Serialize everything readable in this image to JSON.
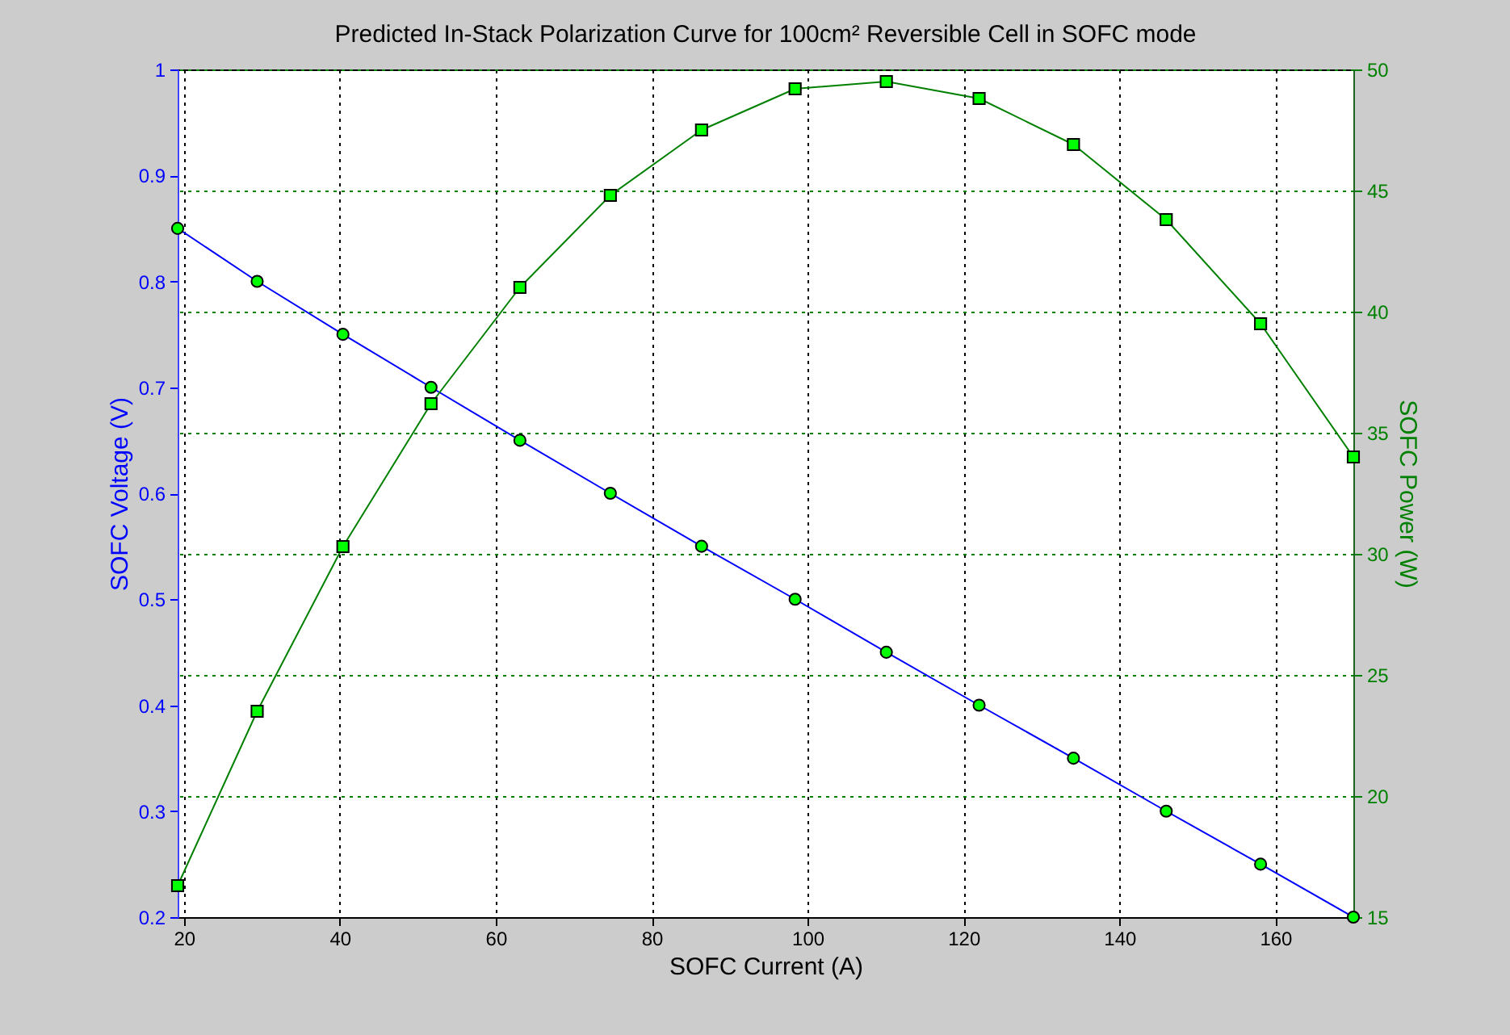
{
  "chart_data": {
    "type": "line",
    "title": "Predicted In-Stack Polarization Curve for 100cm² Reversible Cell in SOFC mode",
    "xlabel": "SOFC Current (A)",
    "ylabel": "SOFC Voltage (V)",
    "y2label": "SOFC Power (W)",
    "x": [
      19.2,
      29.4,
      40.4,
      51.7,
      63.1,
      74.7,
      86.4,
      98.4,
      110.1,
      122.0,
      134.1,
      146.0,
      158.1,
      170.0
    ],
    "series": [
      {
        "color": "#0000ff",
        "marker": "circle",
        "values": [
          0.85,
          0.8,
          0.75,
          0.7,
          0.65,
          0.6,
          0.55,
          0.5,
          0.45,
          0.4,
          0.35,
          0.3,
          0.25,
          0.2
        ]
      },
      {
        "color": "#008000",
        "marker": "square",
        "axis": "y2",
        "values": [
          16.3,
          23.5,
          30.3,
          36.2,
          41.0,
          44.8,
          47.5,
          49.2,
          49.5,
          48.8,
          46.9,
          43.8,
          39.5,
          34.0
        ]
      }
    ],
    "xlim": [
      19.2,
      170
    ],
    "xticks": [
      20,
      40,
      60,
      80,
      100,
      120,
      140,
      160
    ],
    "ylim": [
      0.2,
      1
    ],
    "yticks": [
      0.2,
      0.3,
      0.4,
      0.5,
      0.6,
      0.7,
      0.8,
      0.9,
      1
    ],
    "y2lim": [
      15,
      50
    ],
    "y2ticks": [
      15,
      20,
      25,
      30,
      35,
      40,
      45,
      50
    ],
    "grid": true,
    "line_style": "solid"
  }
}
